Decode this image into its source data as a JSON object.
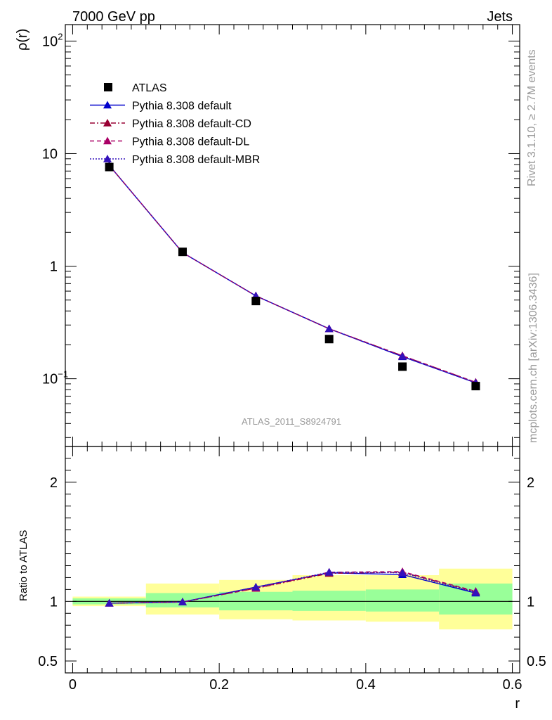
{
  "header": {
    "left_title": "7000 GeV pp",
    "right_title": "Jets"
  },
  "side_labels": {
    "rivet": "Rivet 3.1.10, ≥ 2.7M events",
    "mcplots": "mcplots.cern.ch [arXiv:1306.3436]"
  },
  "watermark": "ATLAS_2011_S8924791",
  "colors": {
    "data": "#000000",
    "default": "#0000cc",
    "cd": "#990033",
    "dl": "#aa0066",
    "mbr": "#3311bb",
    "band_inner": "#99ff99",
    "band_outer": "#ffff99"
  },
  "chart_data": [
    {
      "type": "line",
      "panel": "main",
      "ylabel": "ρ(r)",
      "xlabel": "",
      "yscale": "log",
      "xlim": [
        -0.01,
        0.61
      ],
      "ylim": [
        0.025,
        140
      ],
      "x": [
        0.05,
        0.15,
        0.25,
        0.35,
        0.45,
        0.55
      ],
      "y_ticks": [
        {
          "value": 0.1,
          "label": "10",
          "sup": "−1"
        },
        {
          "value": 1,
          "label": "1",
          "sup": ""
        },
        {
          "value": 10,
          "label": "10",
          "sup": ""
        },
        {
          "value": 100,
          "label": "10",
          "sup": "2"
        }
      ],
      "data_series": {
        "name": "ATLAS",
        "values": [
          7.6,
          1.34,
          0.49,
          0.225,
          0.128,
          0.086
        ]
      },
      "series": [
        {
          "name": "Pythia 8.308 default",
          "style": "solid",
          "color_key": "default",
          "values": [
            7.85,
            1.32,
            0.545,
            0.278,
            0.157,
            0.092
          ]
        },
        {
          "name": "Pythia 8.308 default-CD",
          "style": "dashdot",
          "color_key": "cd",
          "values": [
            7.85,
            1.32,
            0.545,
            0.278,
            0.16,
            0.093
          ]
        },
        {
          "name": "Pythia 8.308 default-DL",
          "style": "dashed",
          "color_key": "dl",
          "values": [
            7.85,
            1.32,
            0.545,
            0.278,
            0.16,
            0.093
          ]
        },
        {
          "name": "Pythia 8.308 default-MBR",
          "style": "dotted",
          "color_key": "mbr",
          "values": [
            7.85,
            1.32,
            0.545,
            0.278,
            0.158,
            0.092
          ]
        }
      ],
      "legend": {
        "placement": "top-left",
        "entries": [
          "ATLAS",
          "Pythia 8.308 default",
          "Pythia 8.308 default-CD",
          "Pythia 8.308 default-DL",
          "Pythia 8.308 default-MBR"
        ]
      }
    },
    {
      "type": "line",
      "panel": "ratio",
      "ylabel": "Ratio to ATLAS",
      "xlabel": "r",
      "xlim": [
        -0.01,
        0.61
      ],
      "ylim": [
        0.4,
        2.3
      ],
      "x_ticks": [
        0,
        0.2,
        0.4,
        0.6
      ],
      "x_tick_labels": [
        "0",
        "0.2",
        "0.4",
        "0.6"
      ],
      "y_ticks": [
        0.5,
        1,
        2
      ],
      "y_tick_labels": [
        "0.5",
        "1",
        "2"
      ],
      "bins": [
        {
          "lo": 0.0,
          "hi": 0.1,
          "inner": [
            0.975,
            1.025
          ],
          "outer": [
            0.96,
            1.04
          ]
        },
        {
          "lo": 0.1,
          "hi": 0.2,
          "inner": [
            0.95,
            1.07
          ],
          "outer": [
            0.89,
            1.15
          ]
        },
        {
          "lo": 0.2,
          "hi": 0.3,
          "inner": [
            0.925,
            1.08
          ],
          "outer": [
            0.85,
            1.18
          ]
        },
        {
          "lo": 0.3,
          "hi": 0.4,
          "inner": [
            0.92,
            1.09
          ],
          "outer": [
            0.84,
            1.22
          ]
        },
        {
          "lo": 0.4,
          "hi": 0.5,
          "inner": [
            0.915,
            1.1
          ],
          "outer": [
            0.83,
            1.22
          ]
        },
        {
          "lo": 0.5,
          "hi": 0.6,
          "inner": [
            0.89,
            1.15
          ],
          "outer": [
            0.765,
            1.275
          ]
        }
      ],
      "series": [
        {
          "name": "Pythia 8.308 default",
          "style": "solid",
          "color_key": "default",
          "values": [
            0.985,
            0.995,
            1.12,
            1.24,
            1.225,
            1.07
          ]
        },
        {
          "name": "Pythia 8.308 default-CD",
          "style": "dashdot",
          "color_key": "cd",
          "values": [
            0.985,
            0.995,
            1.11,
            1.235,
            1.245,
            1.08
          ]
        },
        {
          "name": "Pythia 8.308 default-DL",
          "style": "dashed",
          "color_key": "dl",
          "values": [
            0.985,
            0.995,
            1.11,
            1.245,
            1.25,
            1.085
          ]
        },
        {
          "name": "Pythia 8.308 default-MBR",
          "style": "dotted",
          "color_key": "mbr",
          "values": [
            0.985,
            0.995,
            1.12,
            1.245,
            1.24,
            1.075
          ]
        }
      ]
    }
  ]
}
